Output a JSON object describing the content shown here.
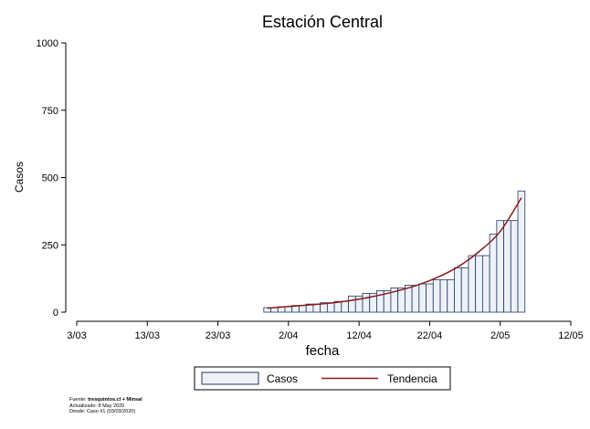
{
  "chart_data": {
    "type": "bar",
    "title": "Estación Central",
    "xlabel": "fecha",
    "ylabel": "Casos",
    "ylim": [
      0,
      1000
    ],
    "yticks": [
      0,
      250,
      500,
      750,
      1000
    ],
    "ytick_labels": [
      "0",
      "250",
      "500",
      "750",
      "1000"
    ],
    "xlim": [
      "2020-03-03",
      "2020-05-12"
    ],
    "xticks": [
      "2020-03-03",
      "2020-03-13",
      "2020-03-23",
      "2020-04-02",
      "2020-04-12",
      "2020-04-22",
      "2020-05-02",
      "2020-05-12"
    ],
    "xtick_labels": [
      "3/03",
      "13/03",
      "23/03",
      "2/04",
      "12/04",
      "22/04",
      "2/05",
      "12/05"
    ],
    "grid": false,
    "legend_position": "bottom",
    "legend": [
      "Casos",
      "Tendencia"
    ],
    "series": [
      {
        "name": "Casos",
        "type": "bar",
        "color": "#eef1f7",
        "edge_color": "#1f3a63",
        "x": [
          "2020-03-30",
          "2020-03-31",
          "2020-04-01",
          "2020-04-02",
          "2020-04-03",
          "2020-04-04",
          "2020-04-05",
          "2020-04-06",
          "2020-04-07",
          "2020-04-08",
          "2020-04-09",
          "2020-04-10",
          "2020-04-11",
          "2020-04-12",
          "2020-04-13",
          "2020-04-14",
          "2020-04-15",
          "2020-04-16",
          "2020-04-17",
          "2020-04-18",
          "2020-04-19",
          "2020-04-20",
          "2020-04-21",
          "2020-04-22",
          "2020-04-23",
          "2020-04-24",
          "2020-04-25",
          "2020-04-26",
          "2020-04-27",
          "2020-04-28",
          "2020-04-29",
          "2020-04-30",
          "2020-05-01",
          "2020-05-02",
          "2020-05-03",
          "2020-05-04",
          "2020-05-05"
        ],
        "values": [
          17,
          17,
          20,
          20,
          25,
          25,
          30,
          30,
          35,
          35,
          40,
          40,
          60,
          60,
          70,
          70,
          80,
          80,
          90,
          90,
          100,
          100,
          105,
          105,
          120,
          120,
          120,
          165,
          165,
          210,
          210,
          210,
          290,
          340,
          340,
          340,
          450
        ]
      },
      {
        "name": "Tendencia",
        "type": "line",
        "color": "#8b1a1a",
        "x": [
          "2020-03-30",
          "2020-04-02",
          "2020-04-05",
          "2020-04-08",
          "2020-04-11",
          "2020-04-14",
          "2020-04-17",
          "2020-04-20",
          "2020-04-23",
          "2020-04-26",
          "2020-04-29",
          "2020-05-02",
          "2020-05-05"
        ],
        "values": [
          15,
          21,
          27,
          34,
          44,
          58,
          76,
          98,
          128,
          168,
          225,
          300,
          425
        ]
      }
    ]
  },
  "footnote": {
    "line1_prefix": "Fuente: ",
    "line1_source": "tresquintos.cl + Minsal",
    "line2": "Actualizado: 8 May 2020",
    "line3": "Desde: Caso #1  (03/03/2020)"
  }
}
